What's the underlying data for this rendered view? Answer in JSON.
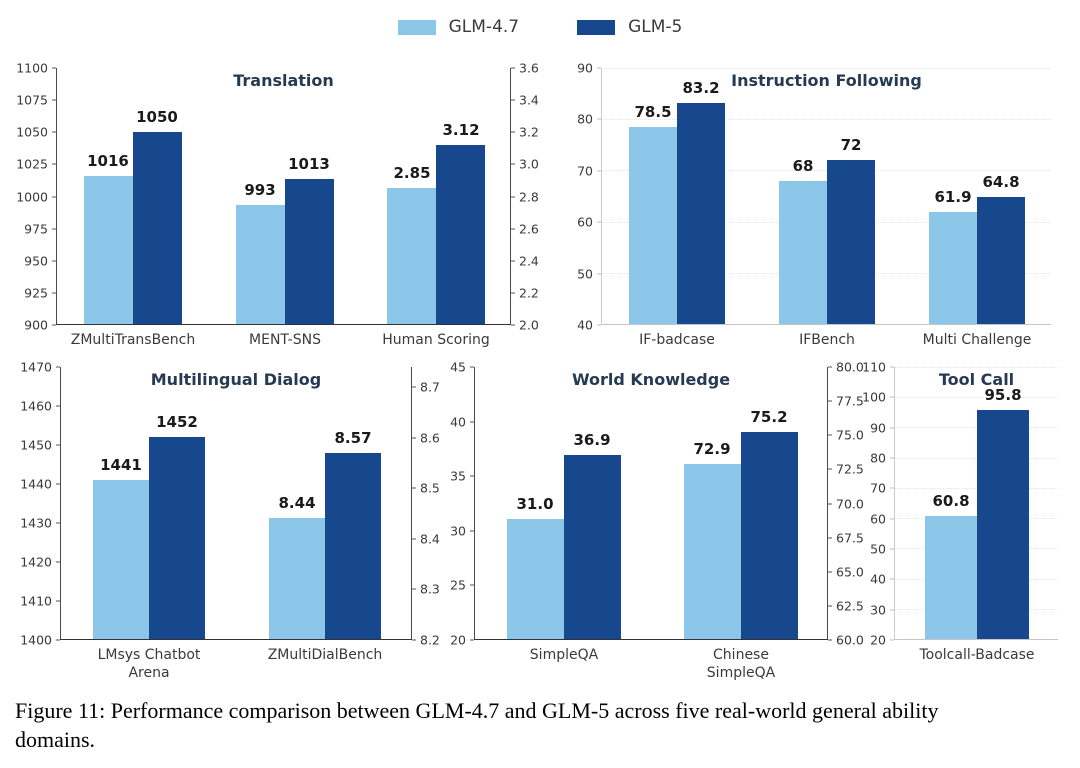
{
  "legend": {
    "items": [
      {
        "label": "GLM-4.7",
        "color": "#8CC6E8"
      },
      {
        "label": "GLM-5",
        "color": "#17478C"
      }
    ]
  },
  "caption": "Figure 11: Performance comparison between GLM-4.7 and GLM-5 across five real-world general ability domains.",
  "chart_data": [
    {
      "type": "bar",
      "title": "Translation",
      "series_names": [
        "GLM-4.7",
        "GLM-5"
      ],
      "left_axis": {
        "min": 900,
        "max": 1100,
        "ticks": [
          "1100",
          "1075",
          "1050",
          "1025",
          "1000",
          "975",
          "950",
          "925",
          "900"
        ]
      },
      "right_axis": {
        "min": 2.0,
        "max": 3.6,
        "ticks": [
          "3.6",
          "3.4",
          "3.2",
          "3.0",
          "2.8",
          "2.6",
          "2.4",
          "2.2",
          "2.0"
        ]
      },
      "categories": [
        {
          "label": "ZMultiTransBench",
          "axis": "left",
          "values": [
            1016,
            1050
          ],
          "labels": [
            "1016",
            "1050"
          ]
        },
        {
          "label": "MENT-SNS",
          "axis": "left",
          "values": [
            993,
            1013
          ],
          "labels": [
            "993",
            "1013"
          ]
        },
        {
          "label": "Human Scoring",
          "axis": "right",
          "values": [
            2.85,
            3.12
          ],
          "labels": [
            "2.85",
            "3.12"
          ]
        }
      ]
    },
    {
      "type": "bar",
      "title": "Instruction Following",
      "series_names": [
        "GLM-4.7",
        "GLM-5"
      ],
      "left_axis": {
        "min": 40,
        "max": 90,
        "ticks": [
          "90",
          "80",
          "70",
          "60",
          "50",
          "40"
        ]
      },
      "categories": [
        {
          "label": "IF-badcase",
          "axis": "left",
          "values": [
            78.5,
            83.2
          ],
          "labels": [
            "78.5",
            "83.2"
          ]
        },
        {
          "label": "IFBench",
          "axis": "left",
          "values": [
            68,
            72
          ],
          "labels": [
            "68",
            "72"
          ]
        },
        {
          "label": "Multi Challenge",
          "axis": "left",
          "values": [
            61.9,
            64.8
          ],
          "labels": [
            "61.9",
            "64.8"
          ]
        }
      ]
    },
    {
      "type": "bar",
      "title": "Multilingual Dialog",
      "series_names": [
        "GLM-4.7",
        "GLM-5"
      ],
      "left_axis": {
        "min": 1400,
        "max": 1470,
        "ticks": [
          "1470",
          "1460",
          "1450",
          "1440",
          "1430",
          "1420",
          "1410",
          "1400"
        ]
      },
      "right_axis": {
        "min": 8.2,
        "max": 8.74,
        "ticks": [
          "8.7",
          "8.6",
          "8.5",
          "8.4",
          "8.3",
          "8.2"
        ]
      },
      "categories": [
        {
          "label": "LMsys Chatbot Arena",
          "axis": "left",
          "values": [
            1441,
            1452
          ],
          "labels": [
            "1441",
            "1452"
          ]
        },
        {
          "label": "ZMultiDialBench",
          "axis": "right",
          "values": [
            8.44,
            8.57
          ],
          "labels": [
            "8.44",
            "8.57"
          ]
        }
      ]
    },
    {
      "type": "bar",
      "title": "World Knowledge",
      "series_names": [
        "GLM-4.7",
        "GLM-5"
      ],
      "left_axis": {
        "min": 20,
        "max": 45,
        "ticks": [
          "45",
          "40",
          "35",
          "30",
          "25",
          "20"
        ]
      },
      "right_axis": {
        "min": 60,
        "max": 80,
        "ticks": [
          "80.0",
          "77.5",
          "75.0",
          "72.5",
          "70.0",
          "67.5",
          "65.0",
          "62.5",
          "60.0"
        ]
      },
      "categories": [
        {
          "label": "SimpleQA",
          "axis": "left",
          "values": [
            31.0,
            36.9
          ],
          "labels": [
            "31.0",
            "36.9"
          ]
        },
        {
          "label": "Chinese SimpleQA",
          "axis": "right",
          "values": [
            72.9,
            75.2
          ],
          "labels": [
            "72.9",
            "75.2"
          ]
        }
      ]
    },
    {
      "type": "bar",
      "title": "Tool Call",
      "series_names": [
        "GLM-4.7",
        "GLM-5"
      ],
      "left_axis": {
        "min": 20,
        "max": 110,
        "ticks": [
          "110",
          "100",
          "90",
          "80",
          "70",
          "60",
          "50",
          "40",
          "30",
          "20"
        ]
      },
      "categories": [
        {
          "label": "Toolcall-Badcase",
          "axis": "left",
          "values": [
            60.8,
            95.8
          ],
          "labels": [
            "60.8",
            "95.8"
          ]
        }
      ]
    }
  ]
}
